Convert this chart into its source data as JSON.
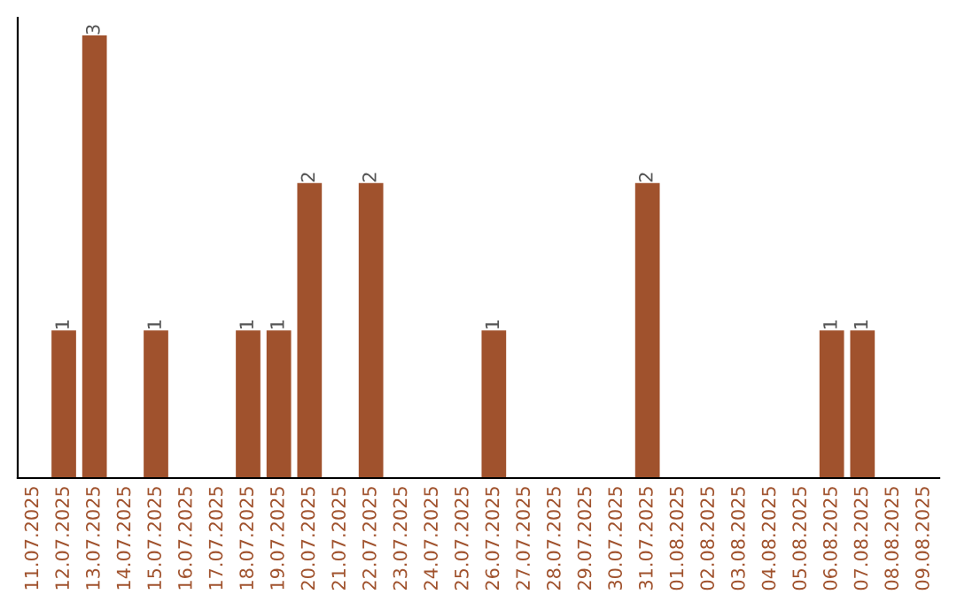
{
  "chart_data": {
    "type": "bar",
    "categories": [
      "11.07.2025",
      "12.07.2025",
      "13.07.2025",
      "14.07.2025",
      "15.07.2025",
      "16.07.2025",
      "17.07.2025",
      "18.07.2025",
      "19.07.2025",
      "20.07.2025",
      "21.07.2025",
      "22.07.2025",
      "23.07.2025",
      "24.07.2025",
      "25.07.2025",
      "26.07.2025",
      "27.07.2025",
      "28.07.2025",
      "29.07.2025",
      "30.07.2025",
      "31.07.2025",
      "01.08.2025",
      "02.08.2025",
      "03.08.2025",
      "04.08.2025",
      "05.08.2025",
      "06.08.2025",
      "07.08.2025",
      "08.08.2025",
      "09.08.2025"
    ],
    "values": [
      0,
      1,
      3,
      0,
      1,
      0,
      0,
      1,
      1,
      2,
      0,
      2,
      0,
      0,
      0,
      1,
      0,
      0,
      0,
      0,
      2,
      0,
      0,
      0,
      0,
      0,
      1,
      1,
      0,
      0
    ],
    "value_labels": [
      null,
      "1",
      "3",
      null,
      "1",
      null,
      null,
      "1",
      "1",
      "2",
      null,
      "2",
      null,
      null,
      null,
      "1",
      null,
      null,
      null,
      null,
      "2",
      null,
      null,
      null,
      null,
      null,
      "1",
      "1",
      null,
      null
    ],
    "color": "#a0522d",
    "grid": false,
    "legend": false,
    "tick_labels": "x"
  }
}
